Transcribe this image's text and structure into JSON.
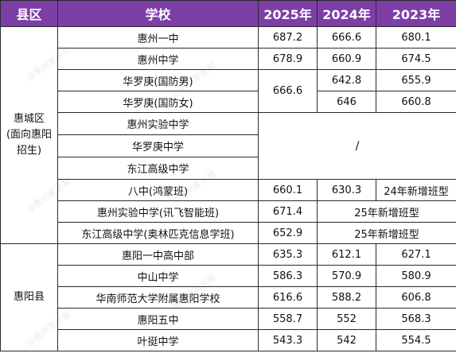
{
  "headers": [
    "县区",
    "学校",
    "2025年",
    "2024年",
    "2023年"
  ],
  "regions": {
    "huicheng_line1": "惠城区",
    "huicheng_line2": "(面向惠阳",
    "huicheng_line3": "招生)",
    "huiyang": "惠阳县"
  },
  "rows": [
    {
      "school": "惠州一中",
      "y2025": "687.2",
      "y2024": "666.6",
      "y2023": "680.1"
    },
    {
      "school": "惠州中学",
      "y2025": "678.9",
      "y2024": "660.9",
      "y2023": "674.5"
    },
    {
      "school": "华罗庚(国防男)",
      "y2025": "666.6",
      "y2024": "642.8",
      "y2023": "655.9"
    },
    {
      "school": "华罗庚(国防女)",
      "y2025": "",
      "y2024": "646",
      "y2023": "660.8"
    },
    {
      "school": "惠州实验中学",
      "y2025": "/",
      "y2024": "",
      "y2023": ""
    },
    {
      "school": "华罗庚中学",
      "y2025": "",
      "y2024": "",
      "y2023": ""
    },
    {
      "school": "东江高级中学",
      "y2025": "",
      "y2024": "",
      "y2023": ""
    },
    {
      "school": "八中(鸿蒙班)",
      "y2025": "660.1",
      "y2024": "630.3",
      "y2023": "24年新增班型"
    },
    {
      "school": "惠州实验中学(讯飞智能班)",
      "y2025": "671.4",
      "y2024": "25年新增班型",
      "y2023": ""
    },
    {
      "school": "东江高级中学(奥林匹克信息学班)",
      "y2025": "652.9",
      "y2024": "25年新增班型",
      "y2023": ""
    },
    {
      "school": "惠阳一中高中部",
      "y2025": "635.3",
      "y2024": "612.1",
      "y2023": "627.1"
    },
    {
      "school": "中山中学",
      "y2025": "586.3",
      "y2024": "570.9",
      "y2023": "580.9"
    },
    {
      "school": "华南师范大学附属惠阳学校",
      "y2025": "616.6",
      "y2024": "588.2",
      "y2023": "606.8"
    },
    {
      "school": "惠阳五中",
      "y2025": "558.7",
      "y2024": "552",
      "y2023": "568.3"
    },
    {
      "school": "叶挺中学",
      "y2025": "543.3",
      "y2024": "542",
      "y2023": "554.5"
    }
  ],
  "watermark": "@惠州家长帮",
  "colors": {
    "header_bg": "#7d3fa6",
    "header_text": "#ffffff",
    "border": "#2a2a2a"
  }
}
